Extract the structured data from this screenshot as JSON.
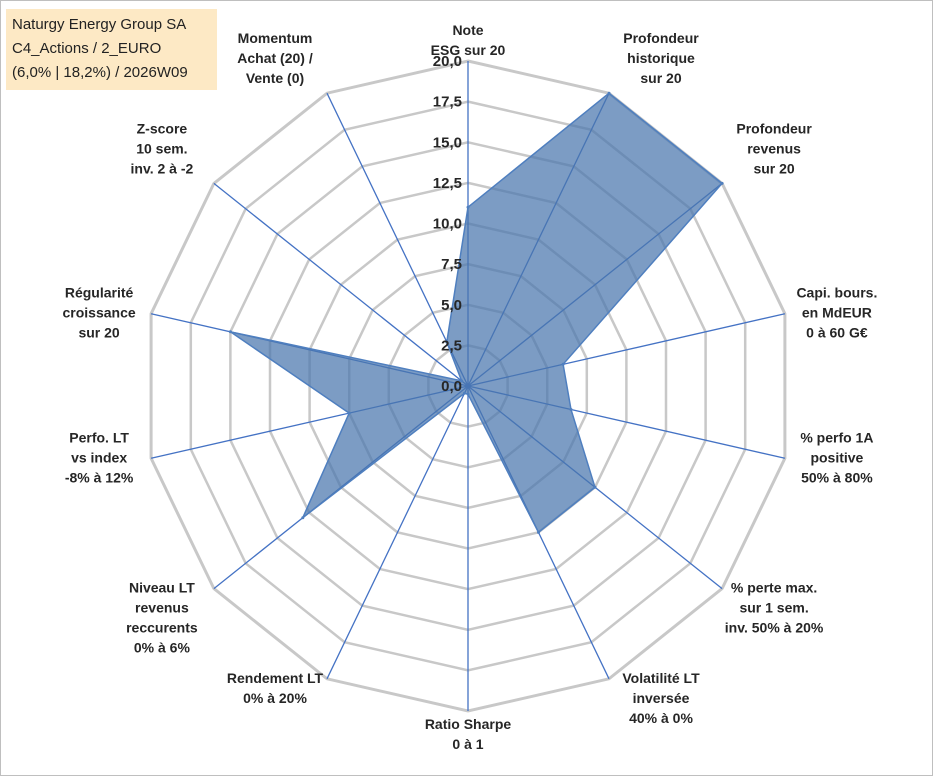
{
  "header": {
    "lines": [
      "Naturgy Energy Group SA",
      "C4_Actions / 2_EURO",
      "(6,0% | 18,2%) / 2026W09"
    ]
  },
  "chart_data": {
    "type": "radar",
    "rmin": 0,
    "rmax": 20,
    "ticks": [
      "0,0",
      "2,5",
      "5,0",
      "7,5",
      "10,0",
      "12,5",
      "15,0",
      "17,5",
      "20,0"
    ],
    "grid": true,
    "colors": {
      "fill": "#4a76ad",
      "stroke": "#4f7fbf",
      "spoke": "#4472c4",
      "grid": "#c8c8c8"
    },
    "axes": [
      {
        "label": [
          "Note",
          "ESG sur 20"
        ],
        "value": 11.0
      },
      {
        "label": [
          "Profondeur",
          "historique",
          "sur 20"
        ],
        "value": 20.0
      },
      {
        "label": [
          "Profondeur",
          "revenus",
          "sur 20"
        ],
        "value": 20.0
      },
      {
        "label": [
          "Capi. bours.",
          "en MdEUR",
          "0 à 60 G€"
        ],
        "value": 6.0
      },
      {
        "label": [
          "% perfo 1A",
          "positive",
          "50% à 80%"
        ],
        "value": 6.5
      },
      {
        "label": [
          "% perte max.",
          "sur 1 sem.",
          "inv. 50% à 20%"
        ],
        "value": 10.0
      },
      {
        "label": [
          "Volatilité LT",
          "inversée",
          "40% à 0%"
        ],
        "value": 10.0
      },
      {
        "label": [
          "Ratio Sharpe",
          "0 à 1"
        ],
        "value": 0.5
      },
      {
        "label": [
          "Rendement LT",
          "0% à 20%"
        ],
        "value": 0.5
      },
      {
        "label": [
          "Niveau LT",
          "revenus",
          "reccurents",
          "0% à 6%"
        ],
        "value": 13.0
      },
      {
        "label": [
          "Perfo. LT",
          "vs index",
          "-8% à 12%"
        ],
        "value": 7.5
      },
      {
        "label": [
          "Régularité",
          "croissance",
          "sur 20"
        ],
        "value": 15.0
      },
      {
        "label": [
          "Z-score",
          "10 sem.",
          "inv. 2 à -2"
        ],
        "value": 0.5
      },
      {
        "label": [
          "Momentum",
          "Achat (20) /",
          "Vente (0)"
        ],
        "value": 3.0
      }
    ]
  }
}
